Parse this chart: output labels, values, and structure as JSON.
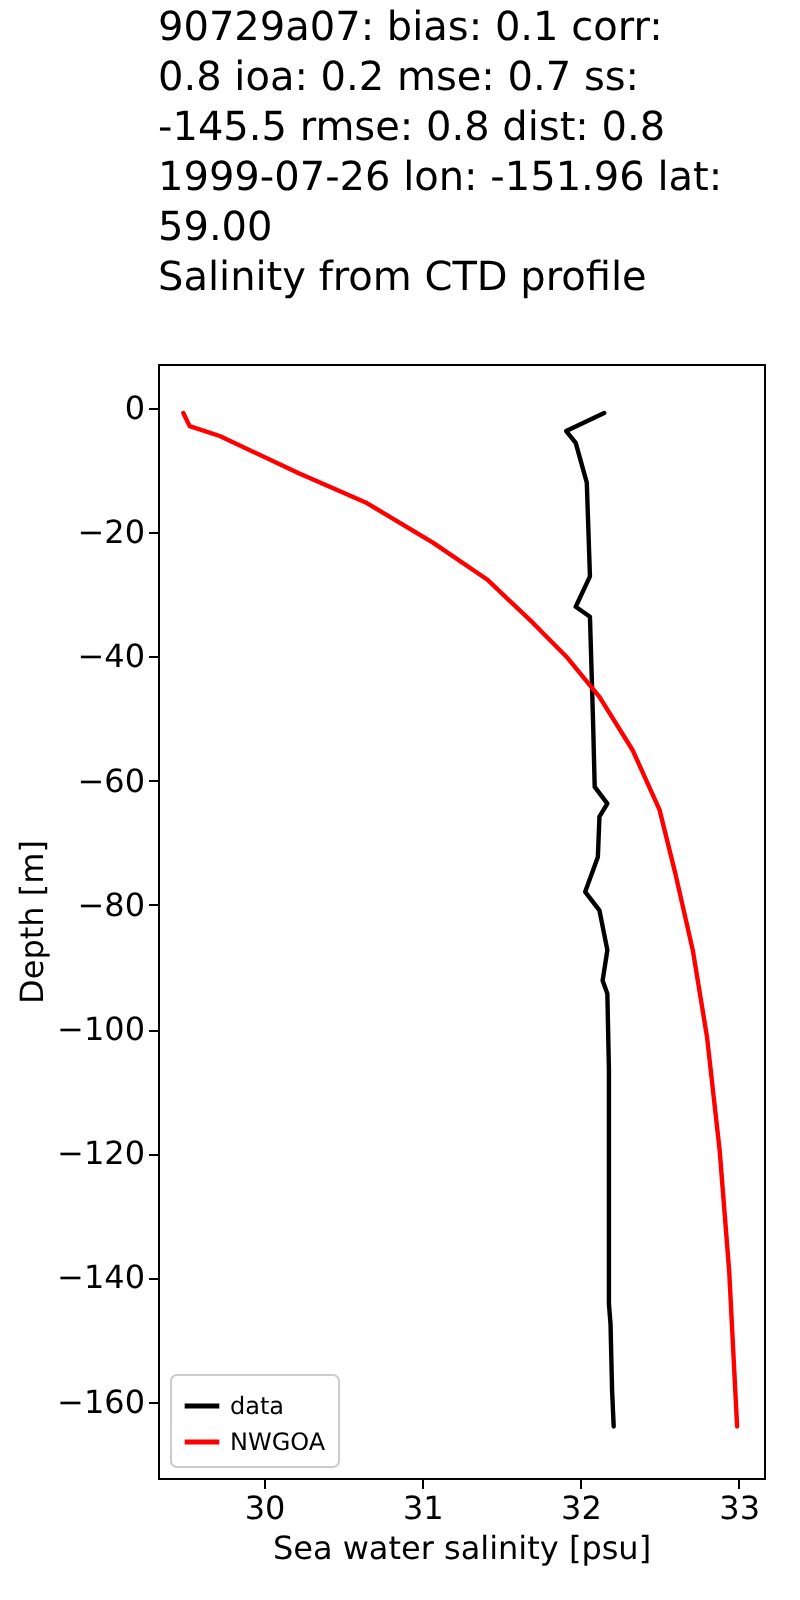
{
  "chart_data": {
    "type": "line",
    "title": "90729a07: bias: 0.1  corr: 0.8  ioa: 0.2  mse: 0.7  ss: -145.5  rmse: 0.8  dist: 0.8\n\n1999-07-26 lon: -151.96 lat: 59.00\nSalinity from CTD profile",
    "xlabel": "Sea water salinity [psu]",
    "ylabel": "Depth [m]",
    "series": [
      {
        "name": "data",
        "color": "#000000",
        "x": [
          32.15,
          31.91,
          31.97,
          32.04,
          32.06,
          31.97,
          32.06,
          32.07,
          32.08,
          32.09,
          32.17,
          32.12,
          32.11,
          32.03,
          32.12,
          32.17,
          32.14,
          32.17,
          32.18,
          32.18,
          32.18,
          32.19,
          32.2,
          32.21
        ],
        "values": [
          -0.8,
          -3.7,
          -5.6,
          -12,
          -27.1,
          -32,
          -33.6,
          -42.2,
          -50.8,
          -61,
          -63.7,
          -65.8,
          -72.3,
          -77.9,
          -80.9,
          -87.3,
          -92.2,
          -94.3,
          -106.7,
          -122.8,
          -144.3,
          -147.5,
          -158.3,
          -164
        ]
      },
      {
        "name": "NWGOA",
        "color": "#ff0000",
        "x": [
          29.49,
          29.53,
          29.72,
          30.22,
          30.65,
          31.07,
          31.41,
          31.7,
          31.91,
          32.12,
          32.33,
          32.5,
          32.6,
          32.71,
          32.8,
          32.88,
          32.94,
          32.99
        ],
        "values": [
          -0.8,
          -2.9,
          -4.5,
          -10.5,
          -15.3,
          -21.7,
          -27.6,
          -34.6,
          -40,
          -46.5,
          -55.1,
          -64.7,
          -75,
          -87.3,
          -101.3,
          -119.6,
          -139,
          -164
        ]
      }
    ],
    "xlim": [
      29.33,
      33.16
    ],
    "xticks": [
      30,
      31,
      32,
      33
    ],
    "ylim": [
      -172.3,
      7.1
    ],
    "yticks": [
      0,
      -20,
      -40,
      -60,
      -80,
      -100,
      -120,
      -140,
      -160
    ],
    "legend": "bottom left",
    "grid": false
  }
}
